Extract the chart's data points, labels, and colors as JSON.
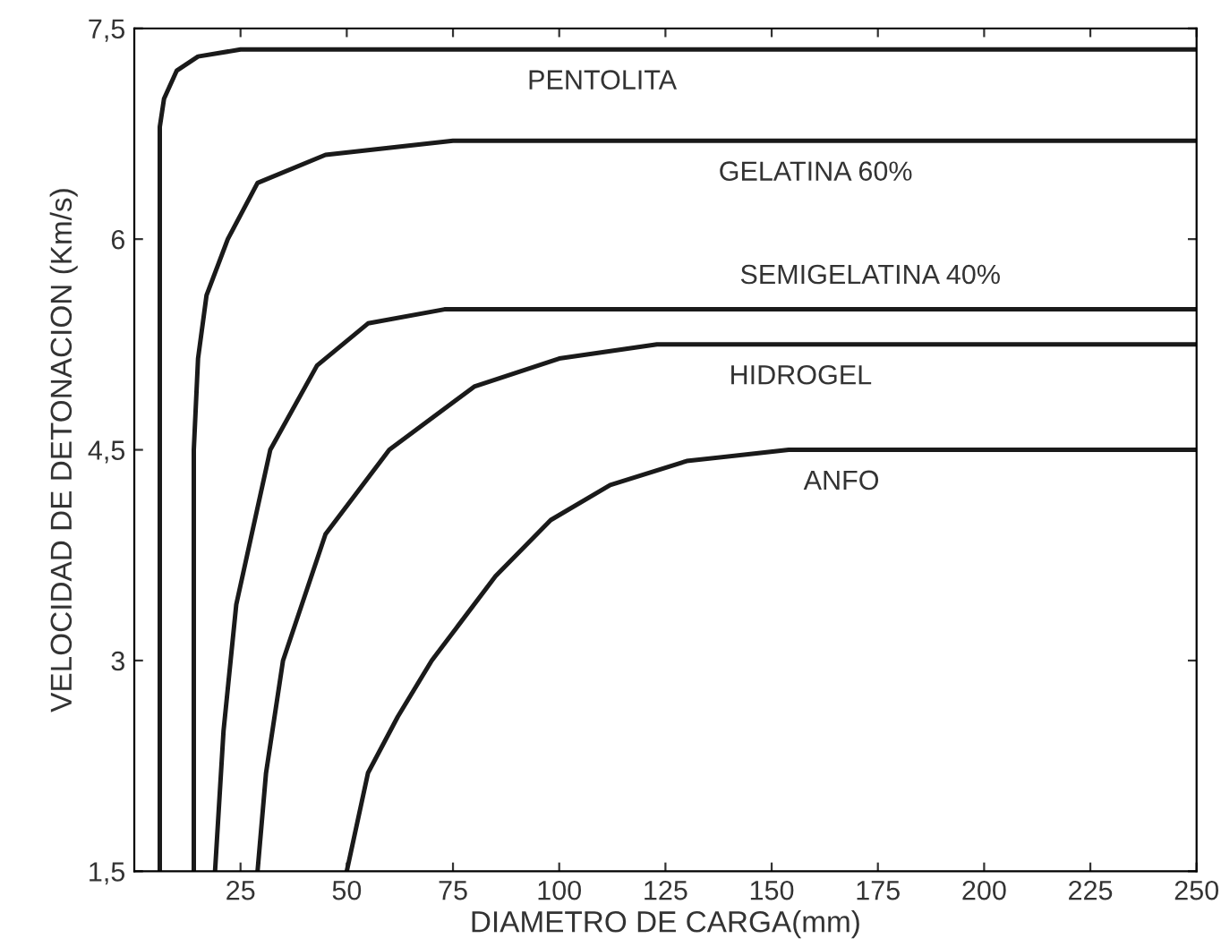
{
  "chart_data": {
    "type": "line",
    "xlabel": "DIAMETRO DE CARGA(mm)",
    "ylabel": "VELOCIDAD DE DETONACION (Km/s)",
    "xlim": [
      0,
      250
    ],
    "xticks": [
      25,
      50,
      75,
      100,
      125,
      150,
      175,
      200,
      225,
      250
    ],
    "ylim": [
      1.5,
      7.5
    ],
    "yticks": [
      {
        "value": 1.5,
        "label": "1,5"
      },
      3,
      {
        "value": 4.5,
        "label": "4,5"
      },
      6,
      {
        "value": 7.5,
        "label": "7,5"
      }
    ],
    "grid": false,
    "legend": false,
    "marker": "none",
    "line_style": "solid",
    "series": [
      {
        "name": "PENTOLITA",
        "color": "#1a1a1a",
        "x": [
          6,
          6,
          7,
          10,
          15,
          25,
          250
        ],
        "values": [
          1.5,
          6.8,
          7.0,
          7.2,
          7.3,
          7.35,
          7.35
        ]
      },
      {
        "name": "GELATINA 60%",
        "color": "#1a1a1a",
        "x": [
          14,
          14,
          15,
          17,
          22,
          29,
          45,
          75,
          250
        ],
        "values": [
          1.5,
          4.5,
          5.15,
          5.6,
          6.0,
          6.4,
          6.6,
          6.7,
          6.7
        ]
      },
      {
        "name": "SEMIGELATINA 40%",
        "color": "#1a1a1a",
        "x": [
          19,
          21,
          24,
          32,
          43,
          55,
          73,
          250
        ],
        "values": [
          1.5,
          2.5,
          3.4,
          4.5,
          5.1,
          5.4,
          5.5,
          5.5
        ]
      },
      {
        "name": "HIDROGEL",
        "color": "#1a1a1a",
        "x": [
          29,
          31,
          35,
          45,
          60,
          80,
          100,
          123,
          250
        ],
        "values": [
          1.5,
          2.2,
          3.0,
          3.9,
          4.5,
          4.95,
          5.15,
          5.25,
          5.25
        ]
      },
      {
        "name": "ANFO",
        "color": "#1a1a1a",
        "x": [
          50,
          55,
          62,
          70,
          85,
          98,
          112,
          130,
          154,
          250
        ],
        "values": [
          1.5,
          2.2,
          2.6,
          3.0,
          3.6,
          4.0,
          4.25,
          4.42,
          4.5,
          4.5
        ]
      }
    ]
  }
}
